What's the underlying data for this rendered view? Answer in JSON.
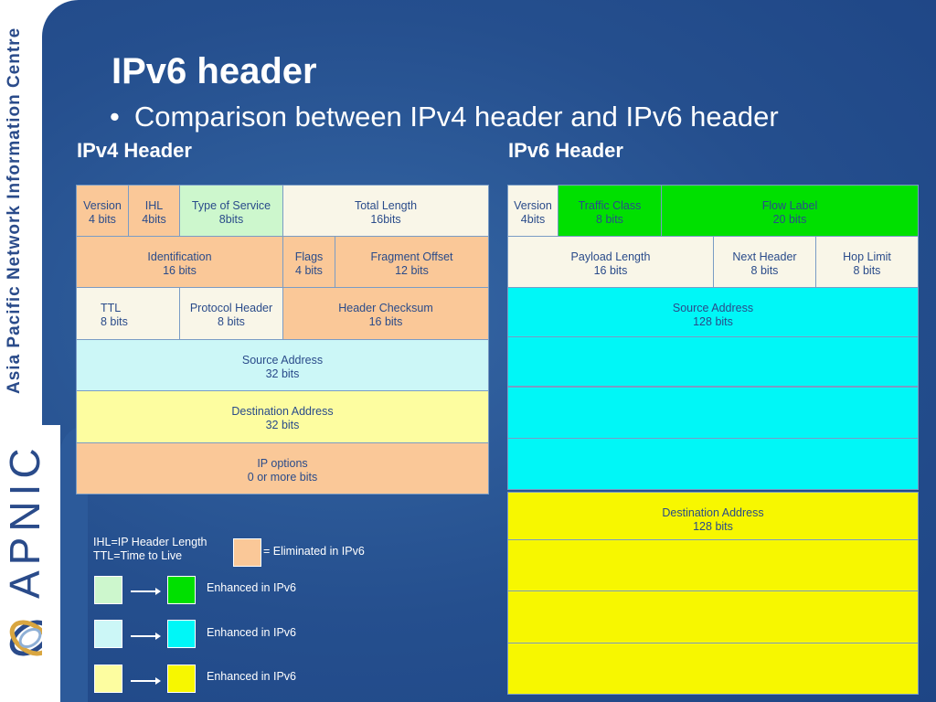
{
  "sidebar": {
    "org_name": "Asia Pacific Network Information Centre",
    "brand": "APNIC"
  },
  "slide": {
    "title": "IPv6 header",
    "bullet": "•",
    "subtitle": "Comparison between IPv4 header and IPv6 header"
  },
  "ipv4": {
    "heading": "IPv4 Header",
    "fields": [
      {
        "label": "Version\n4 bits",
        "status": "eliminated"
      },
      {
        "label": "IHL\n4bits",
        "status": "eliminated"
      },
      {
        "label": "Type of Service\n8bits",
        "status": "enhanced-green"
      },
      {
        "label": "Total Length\n16bits",
        "status": "kept"
      },
      {
        "label": "Identification\n16 bits",
        "status": "eliminated"
      },
      {
        "label": "Flags\n4 bits",
        "status": "eliminated"
      },
      {
        "label": "Fragment Offset\n12 bits",
        "status": "eliminated"
      },
      {
        "label": "TTL\n8 bits",
        "status": "kept"
      },
      {
        "label": "Protocol Header\n8 bits",
        "status": "kept"
      },
      {
        "label": "Header Checksum\n16 bits",
        "status": "eliminated"
      },
      {
        "label": "Source Address\n32 bits",
        "status": "enhanced-cyan"
      },
      {
        "label": "Destination Address\n32 bits",
        "status": "enhanced-yellow"
      },
      {
        "label": "IP options\n0 or more bits",
        "status": "eliminated"
      }
    ]
  },
  "ipv6": {
    "heading": "IPv6 Header",
    "fields": [
      {
        "label": "Version\n4bits",
        "status": "kept"
      },
      {
        "label": "Traffic Class\n8 bits",
        "status": "enhanced-green"
      },
      {
        "label": "Flow Label\n20 bits",
        "status": "enhanced-green"
      },
      {
        "label": "Payload Length\n16 bits",
        "status": "kept"
      },
      {
        "label": "Next Header\n8 bits",
        "status": "kept"
      },
      {
        "label": "Hop Limit\n8 bits",
        "status": "kept"
      },
      {
        "label": "Source Address\n128 bits",
        "status": "enhanced-cyan"
      },
      {
        "label": "",
        "status": "enhanced-cyan"
      },
      {
        "label": "",
        "status": "enhanced-cyan"
      },
      {
        "label": "",
        "status": "enhanced-cyan"
      },
      {
        "label": "Destination Address\n128 bits",
        "status": "enhanced-yellow"
      },
      {
        "label": "",
        "status": "enhanced-yellow"
      },
      {
        "label": "",
        "status": "enhanced-yellow"
      },
      {
        "label": "",
        "status": "enhanced-yellow"
      }
    ]
  },
  "legend": {
    "notes": "IHL=IP Header Length\nTTL=Time to Live",
    "eliminated": "= Eliminated in IPv6",
    "enhanced": [
      "Enhanced in IPv6",
      "Enhanced in IPv6",
      "Enhanced in IPv6"
    ]
  },
  "colors": {
    "eliminated": "#fac898",
    "kept": "#f9f6e8",
    "light_green": "#cdf7cd",
    "green": "#00e000",
    "light_cyan": "#ccf7f7",
    "cyan": "#00f7f7",
    "light_yellow": "#fdfda0",
    "yellow": "#f7f700"
  }
}
